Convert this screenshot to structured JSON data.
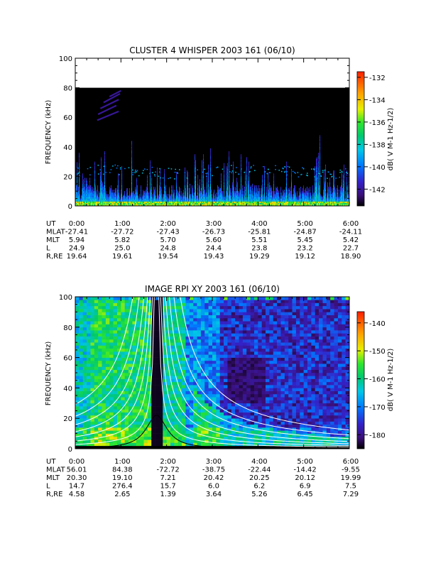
{
  "chart_data": [
    {
      "type": "heatmap",
      "title": "CLUSTER 4 WHISPER 2003 161 (06/10)",
      "ylabel": "FREQUENCY (kHz)",
      "ylim": [
        0,
        100
      ],
      "y_ticks": [
        "0",
        "20",
        "40",
        "60",
        "80",
        "100"
      ],
      "x_range_hours": [
        0,
        6
      ],
      "data_ceiling_khz": 80,
      "colorbar": {
        "label": "dB( V M⁻¹ Hz⁻¹ᐟ²)",
        "label_text": "dB( V M-1 Hz-1/2)",
        "ticks": [
          "-132",
          "-134",
          "-136",
          "-138",
          "-140",
          "-142"
        ],
        "range": [
          -143.5,
          -131.5
        ]
      },
      "table": {
        "rows": [
          {
            "name": "UT",
            "values": [
              "0:00",
              "1:00",
              "2:00",
              "3:00",
              "4:00",
              "5:00",
              "6:00"
            ]
          },
          {
            "name": "MLAT",
            "values": [
              "-27.41",
              "-27.72",
              "-27.43",
              "-26.73",
              "-25.81",
              "-24.87",
              "-24.11"
            ]
          },
          {
            "name": "MLT",
            "values": [
              "5.94",
              "5.82",
              "5.70",
              "5.60",
              "5.51",
              "5.45",
              "5.42"
            ]
          },
          {
            "name": "L",
            "values": [
              "24.9",
              "25.0",
              "24.8",
              "24.4",
              "23.8",
              "23.2",
              "22.7"
            ]
          },
          {
            "name": "R,RE",
            "values": [
              "19.64",
              "19.61",
              "19.54",
              "19.43",
              "19.29",
              "19.12",
              "18.90"
            ]
          }
        ]
      },
      "features": [
        {
          "name": "upper-hiss-band",
          "y_khz": [
            20,
            27
          ]
        },
        {
          "name": "sweep-emissions",
          "x_hours": [
            0.45,
            1.0
          ],
          "y_khz": [
            58,
            78
          ]
        }
      ]
    },
    {
      "type": "heatmap",
      "title": "IMAGE RPI XY 2003 161 (06/10)",
      "ylabel": "FREQUENCY (kHz)",
      "ylim": [
        0,
        100
      ],
      "y_ticks": [
        "0",
        "20",
        "40",
        "60",
        "80",
        "100"
      ],
      "x_range_hours": [
        0,
        6
      ],
      "colorbar": {
        "label": "dB( V M-1 Hz-1/2)",
        "label_text": "dB( V M-1 Hz-1/2)",
        "ticks": [
          "-140",
          "-150",
          "-160",
          "-170",
          "-180"
        ],
        "range": [
          -185,
          -136
        ]
      },
      "table": {
        "rows": [
          {
            "name": "UT",
            "values": [
              "0:00",
              "1:00",
              "2:00",
              "3:00",
              "4:00",
              "5:00",
              "6:00"
            ]
          },
          {
            "name": "MLAT",
            "values": [
              "56.01",
              "84.38",
              "-72.72",
              "-38.75",
              "-22.44",
              "-14.42",
              "-9.55"
            ]
          },
          {
            "name": "MLT",
            "values": [
              "20.30",
              "19.10",
              "7.21",
              "20.42",
              "20.25",
              "20.12",
              "19.99"
            ]
          },
          {
            "name": "L",
            "values": [
              "14.7",
              "276.4",
              "15.7",
              "6.0",
              "6.2",
              "6.9",
              "7.5"
            ]
          },
          {
            "name": "R,RE",
            "values": [
              "4.58",
              "2.65",
              "1.39",
              "3.64",
              "5.26",
              "6.45",
              "7.29"
            ]
          }
        ]
      },
      "features": [
        {
          "name": "black-gap",
          "x_hours": [
            1.68,
            1.88
          ]
        },
        {
          "name": "white-curves",
          "centre_hours": 1.78,
          "count": 7
        },
        {
          "name": "black-peak-curve",
          "centre_hours": 1.78,
          "peak_khz": 22
        }
      ]
    }
  ]
}
